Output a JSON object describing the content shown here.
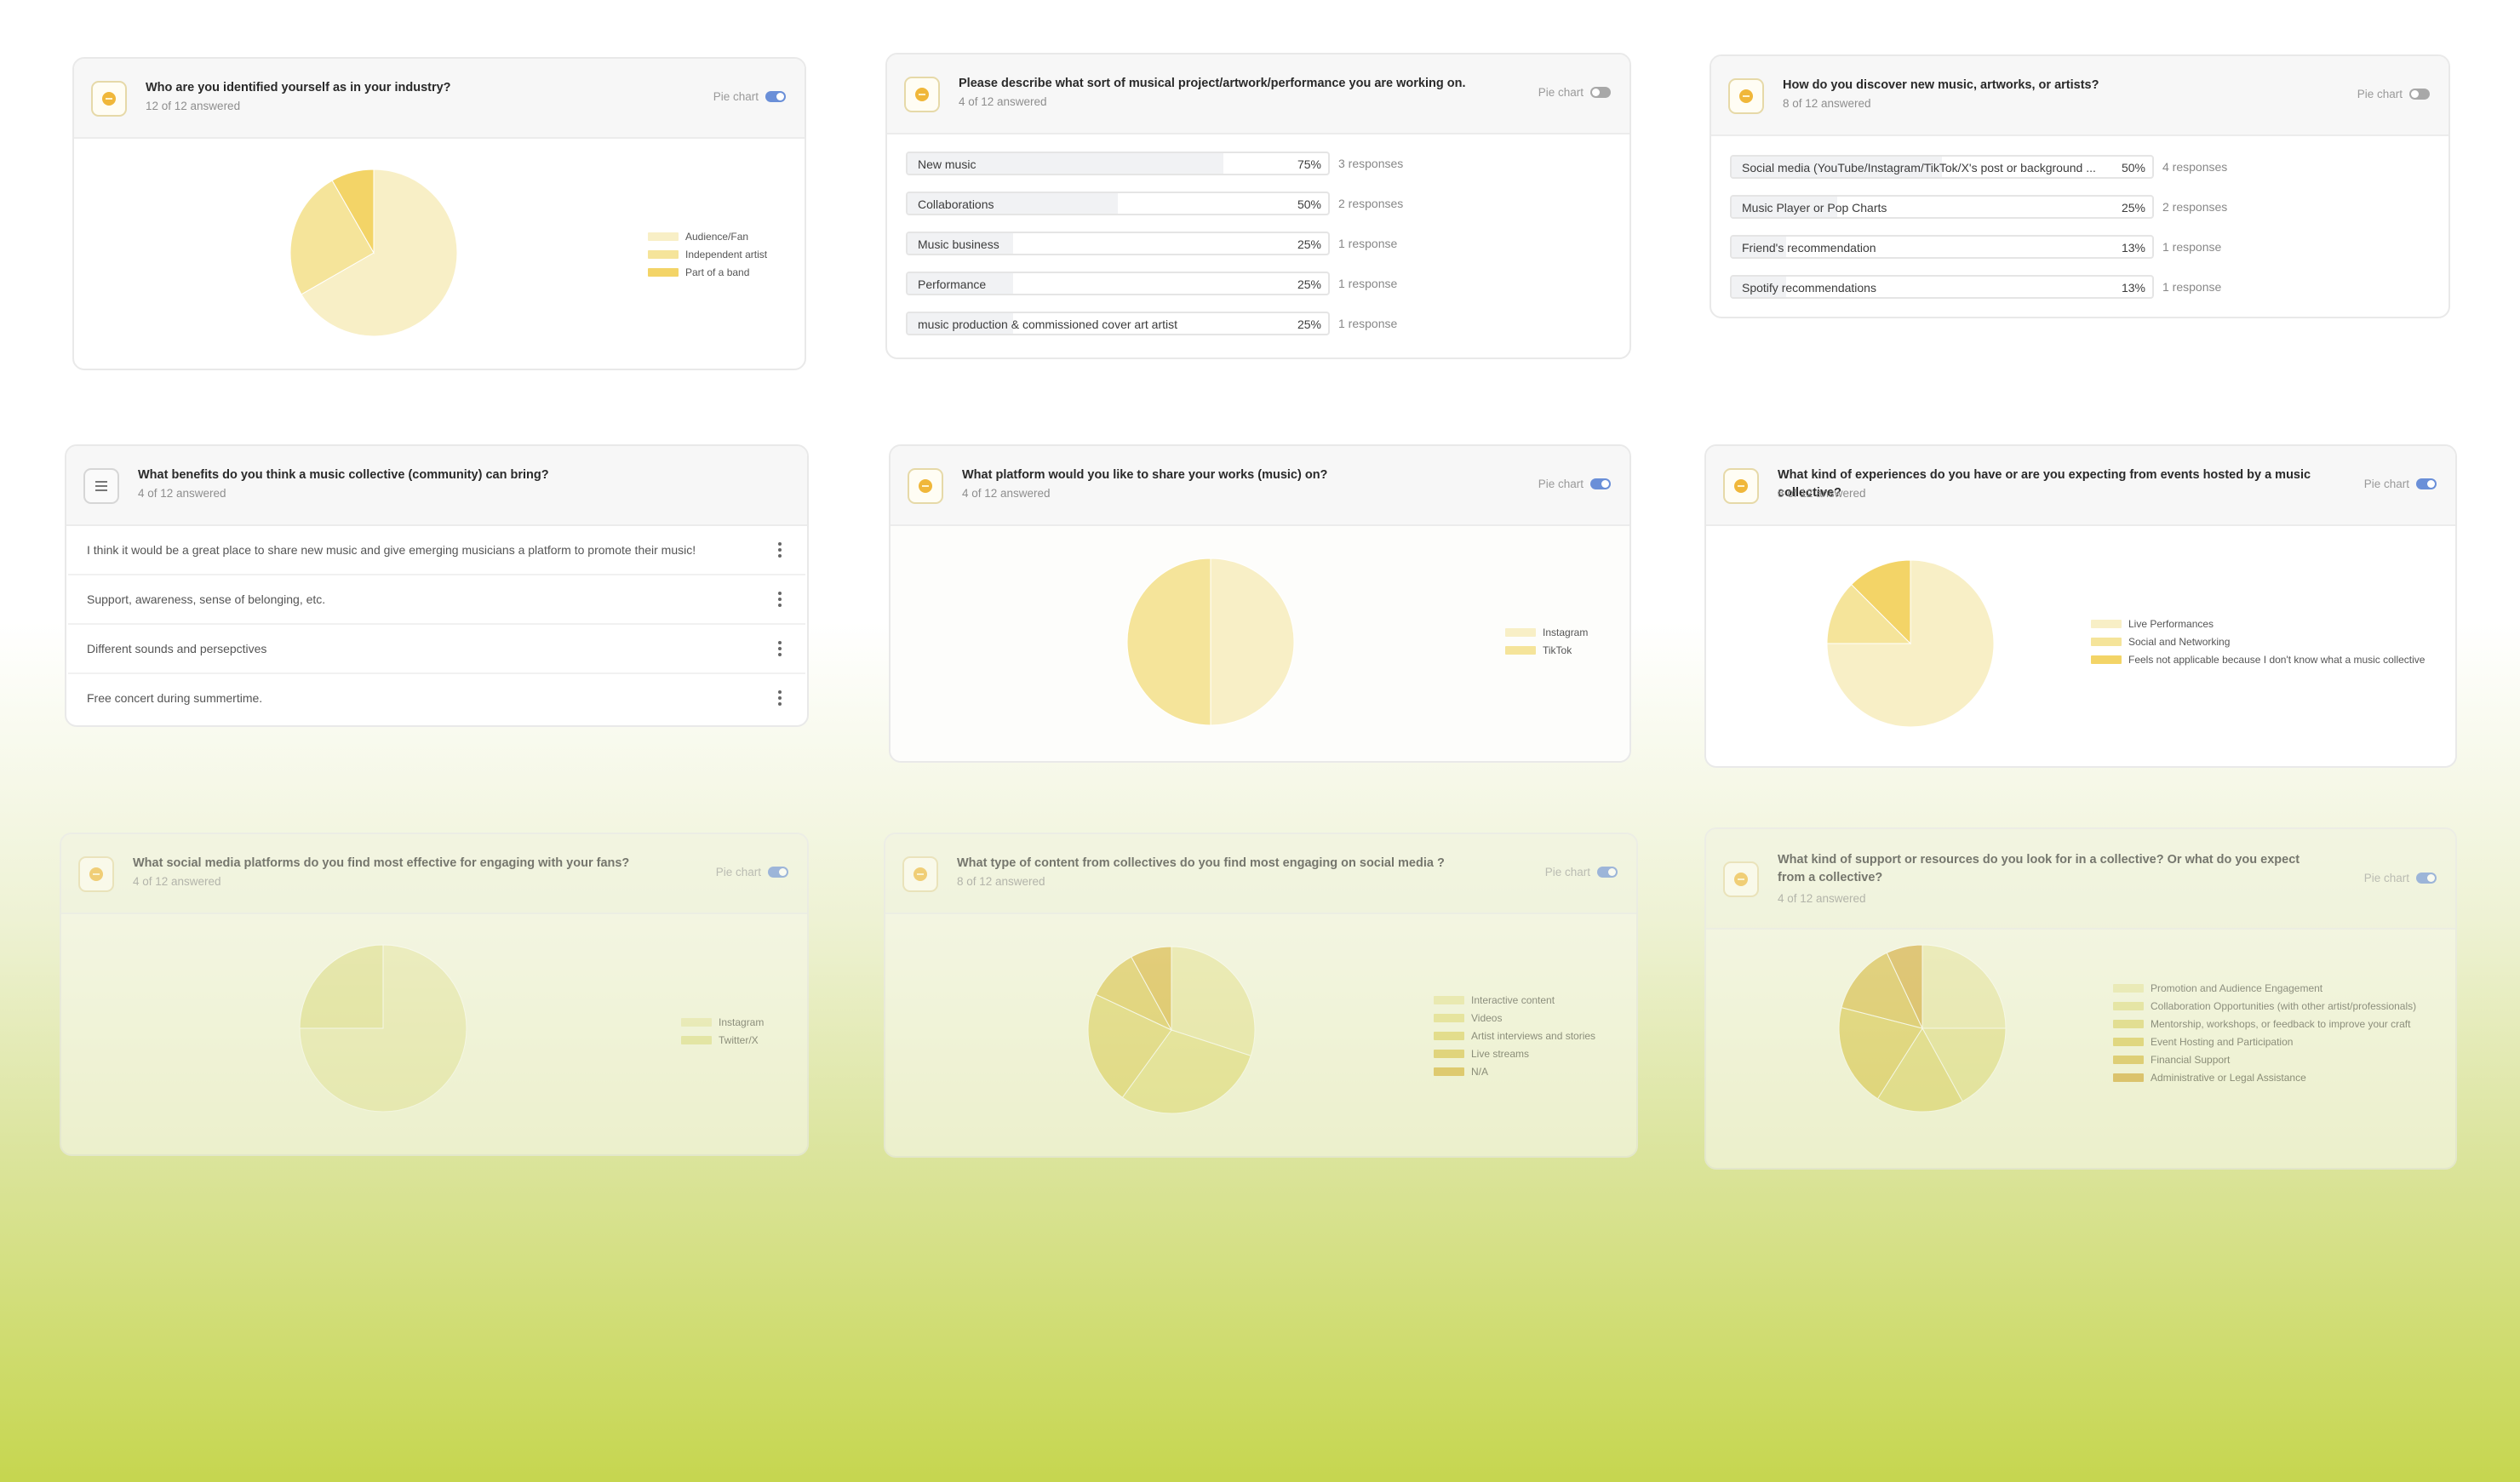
{
  "pie_chart_label": "Pie chart",
  "cards": [
    {
      "title": "Who are you identified yourself as in your industry?",
      "answered": "12 of 12 answered",
      "toggle_on": true,
      "chart_data": {
        "type": "pie",
        "labels": [
          "Audience/Fan",
          "Independent artist",
          "Part of a band"
        ],
        "values": [
          66.7,
          25,
          8.3
        ],
        "colors": [
          "#f8efc6",
          "#f5e49a",
          "#f3d467"
        ]
      }
    },
    {
      "title": "Please describe what sort of musical project/artwork/performance you are working on.",
      "answered": "4 of 12 answered",
      "toggle_on": false,
      "chart_data": {
        "type": "bar",
        "categories": [
          "New music",
          "Collaborations",
          "Music business",
          "Performance",
          "music production & commissioned cover art artist"
        ],
        "percent_labels": [
          "75%",
          "50%",
          "25%",
          "25%",
          "25%"
        ],
        "values": [
          75,
          50,
          25,
          25,
          25
        ],
        "counts": [
          "3 responses",
          "2 responses",
          "1 response",
          "1 response",
          "1 response"
        ]
      }
    },
    {
      "title": "How do you discover new music, artworks, or artists?",
      "answered": "8 of 12 answered",
      "toggle_on": false,
      "chart_data": {
        "type": "bar",
        "categories": [
          "Social media (YouTube/Instagram/TikTok/X's post or background ...",
          "Music Player or Pop Charts",
          "Friend's recommendation",
          "Spotify recommendations"
        ],
        "percent_labels": [
          "50%",
          "25%",
          "13%",
          "13%"
        ],
        "values": [
          50,
          25,
          13,
          13
        ],
        "counts": [
          "4 responses",
          "2 responses",
          "1 response",
          "1 response"
        ]
      }
    },
    {
      "title": "What benefits do you think a music collective (community) can bring?",
      "answered": "4 of 12 answered",
      "responses": [
        "I think it would be a great place to share new music and give emerging musicians a platform to promote their music!",
        "Support, awareness, sense of belonging, etc.",
        "Different sounds and persepctives",
        "Free concert during summertime."
      ]
    },
    {
      "title": "What platform would you like to share your works (music) on?",
      "answered": "4 of 12 answered",
      "toggle_on": true,
      "chart_data": {
        "type": "pie",
        "labels": [
          "Instagram",
          "TikTok"
        ],
        "values": [
          50,
          50
        ],
        "colors": [
          "#f8efc6",
          "#f5e49a"
        ]
      }
    },
    {
      "title": "What kind of experiences do you have or are you expecting from events hosted by a music collective?",
      "answered": "8 of 12 answered",
      "toggle_on": true,
      "chart_data": {
        "type": "pie",
        "labels": [
          "Live Performances",
          "Social and Networking",
          "Feels not applicable because I don't know what a music collective"
        ],
        "values": [
          75,
          12.5,
          12.5
        ],
        "colors": [
          "#f8efc6",
          "#f5e49a",
          "#f3d467"
        ]
      }
    },
    {
      "title": "What social media platforms do you find most effective for engaging with your fans?",
      "answered": "4 of 12 answered",
      "toggle_on": true,
      "chart_data": {
        "type": "pie",
        "labels": [
          "Instagram",
          "Twitter/X"
        ],
        "values": [
          75,
          25
        ],
        "colors": [
          "#ebeab6",
          "#e3e29a"
        ]
      }
    },
    {
      "title": "What type of content from collectives do you find most engaging on social media ?",
      "answered": "8 of 12 answered",
      "toggle_on": true,
      "chart_data": {
        "type": "pie",
        "labels": [
          "Interactive content",
          "Videos",
          "Artist interviews and stories",
          "Live streams",
          "N/A"
        ],
        "values": [
          30,
          30,
          22,
          10,
          8
        ],
        "colors": [
          "#ebe7a8",
          "#e6e08c",
          "#e2d572",
          "#dfc85b",
          "#ddb848"
        ]
      }
    },
    {
      "title": "What kind of support or resources do you look for in a collective? Or what do you expect from a collective?",
      "answered": "4 of 12 answered",
      "toggle_on": true,
      "chart_data": {
        "type": "pie",
        "labels": [
          "Promotion and Audience Engagement",
          "Collaboration Opportunities (with other artist/professionals)",
          "Mentorship, workshops, or feedback to improve your craft",
          "Event Hosting and Participation",
          "Financial Support",
          "Administrative or Legal Assistance"
        ],
        "values": [
          25,
          17,
          17,
          20,
          14,
          7
        ],
        "colors": [
          "#ebe8b0",
          "#e5e196",
          "#e1d779",
          "#dfcc60",
          "#dcbf52",
          "#d8ad45"
        ]
      }
    }
  ]
}
